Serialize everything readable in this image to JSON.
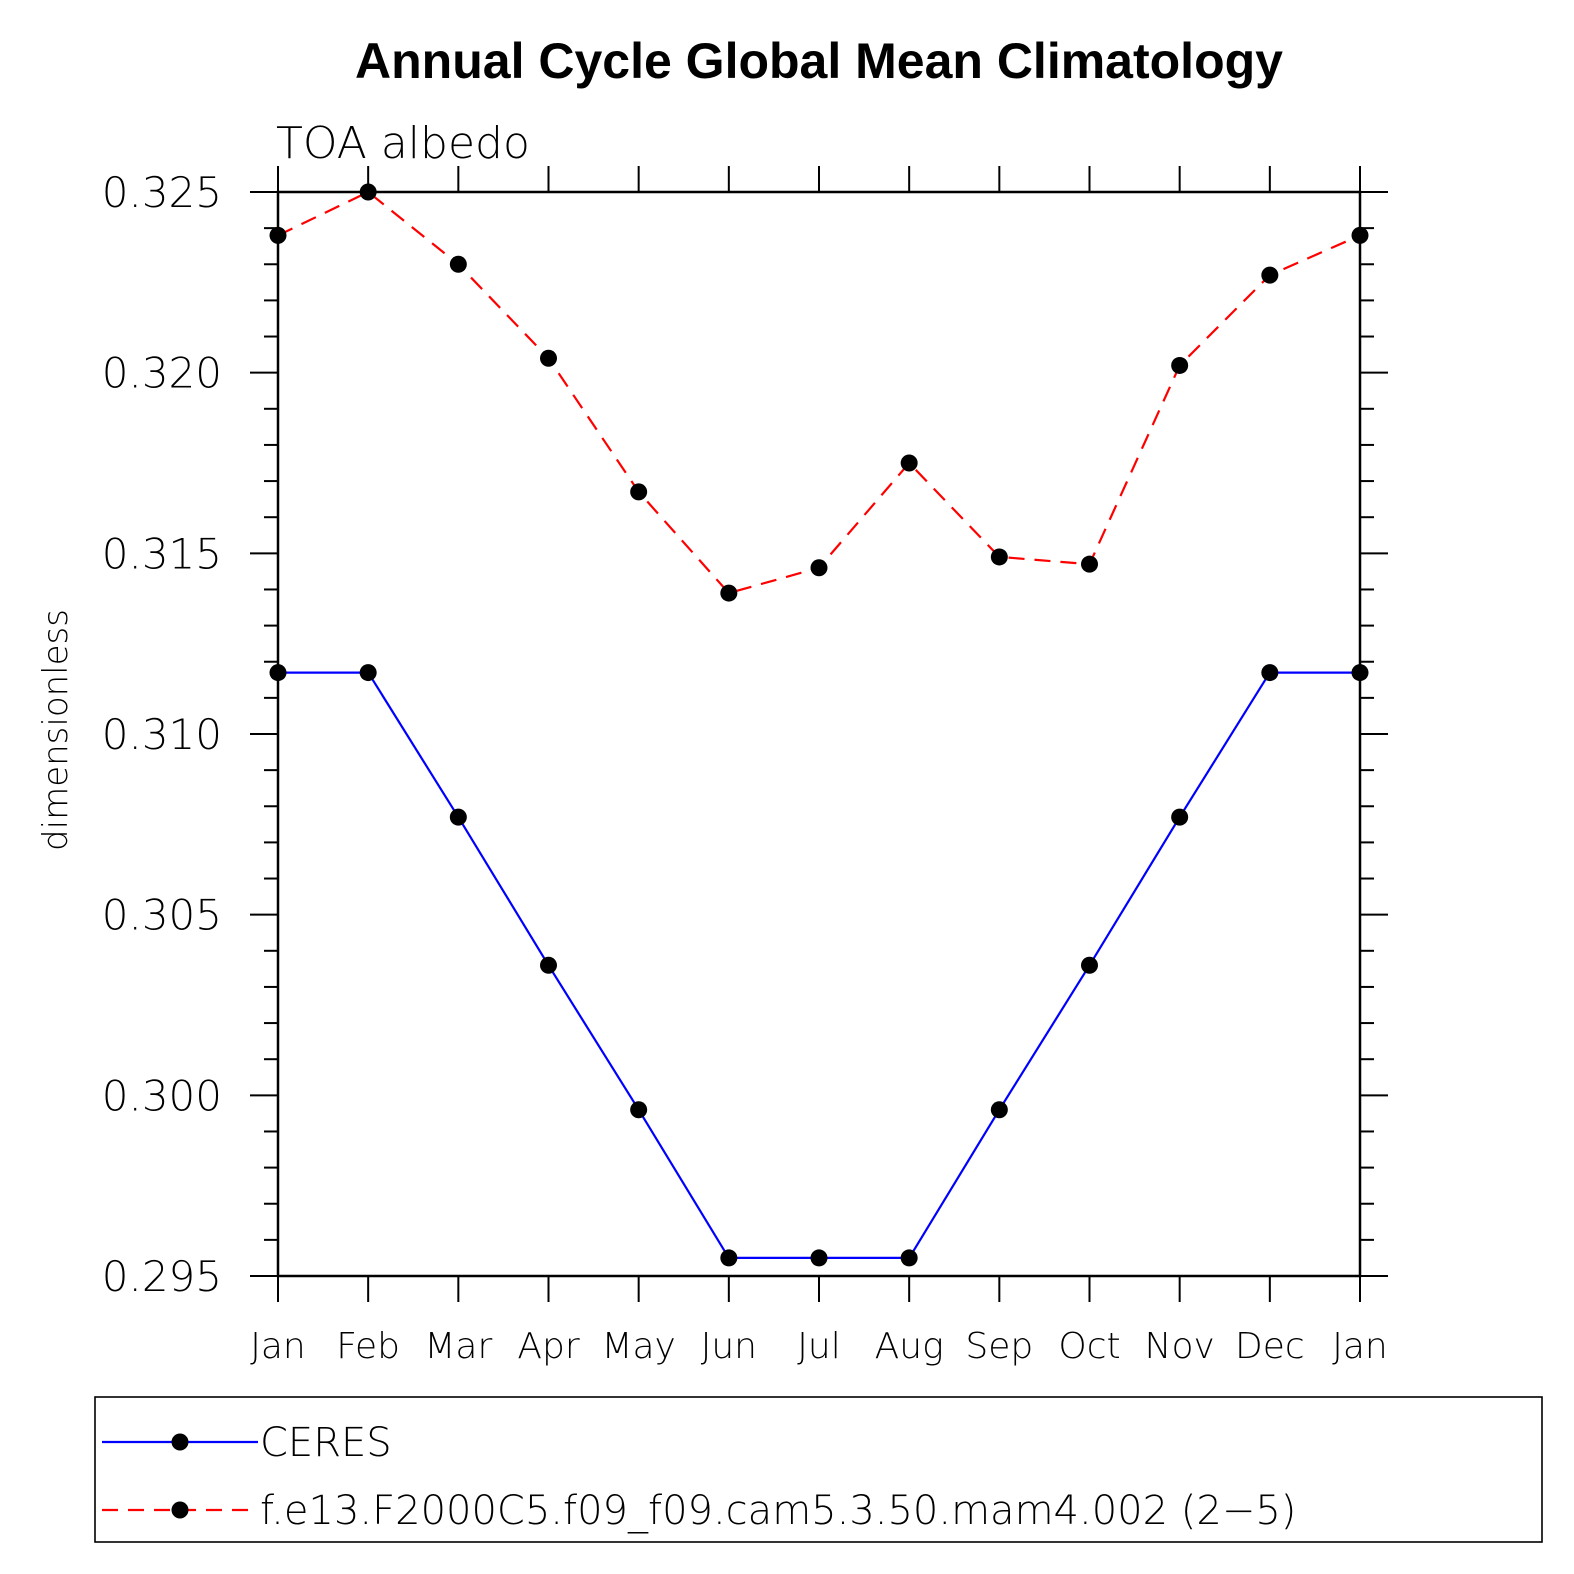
{
  "chart_data": {
    "type": "line",
    "title": "Annual Cycle Global Mean Climatology",
    "subtitle": "TOA albedo",
    "xlabel": "",
    "ylabel": "dimensionless",
    "categories": [
      "Jan",
      "Feb",
      "Mar",
      "Apr",
      "May",
      "Jun",
      "Jul",
      "Aug",
      "Sep",
      "Oct",
      "Nov",
      "Dec",
      "Jan"
    ],
    "ylim": [
      0.295,
      0.325
    ],
    "yticks": [
      "0.295",
      "0.300",
      "0.305",
      "0.310",
      "0.315",
      "0.320",
      "0.325"
    ],
    "ytick_values": [
      0.295,
      0.3,
      0.305,
      0.31,
      0.315,
      0.32,
      0.325
    ],
    "grid": false,
    "legend_position": "bottom",
    "series": [
      {
        "name": "CERES",
        "color": "#0000ff",
        "line_style": "solid",
        "marker": "filled-circle",
        "values": [
          0.3117,
          0.3117,
          0.3077,
          0.3036,
          0.2996,
          0.2955,
          0.2955,
          0.2955,
          0.2996,
          0.3036,
          0.3077,
          0.3117,
          0.3117
        ]
      },
      {
        "name": "f.e13.F2000C5.f09_f09.cam5.3.50.mam4.002 (2−5)",
        "color": "#ff0000",
        "line_style": "dashed",
        "marker": "filled-circle",
        "values": [
          0.3238,
          0.325,
          0.323,
          0.3204,
          0.3167,
          0.3139,
          0.3146,
          0.3175,
          0.3149,
          0.3147,
          0.3202,
          0.3227,
          0.3238
        ]
      }
    ]
  }
}
